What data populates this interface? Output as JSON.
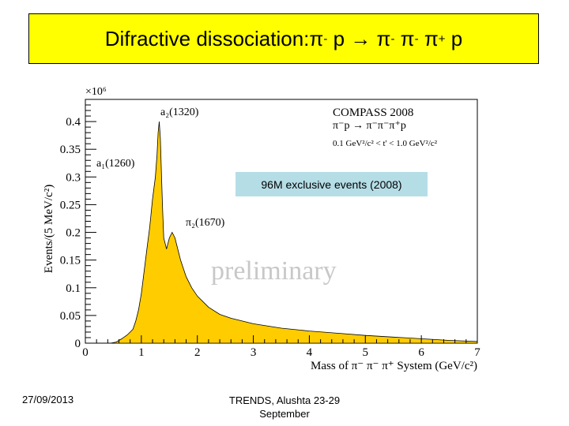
{
  "slide": {
    "title_prefix": "Difractive dissociation: ",
    "title_parts": [
      "π",
      "-",
      " p ",
      "→",
      " π",
      "-",
      " π",
      "-",
      " π",
      "+",
      " p"
    ],
    "footer_date": "27/09/2013",
    "footer_venue": "TRENDS, Alushta 23-29 September",
    "events_label": "96M exclusive events (2008)",
    "colors": {
      "title_bg": "#ffff00",
      "fill": "#ffcc00",
      "events_bg": "#b5dde6"
    }
  },
  "chart_data": {
    "type": "area",
    "title": "",
    "xlabel": "Mass of π⁻ π⁻ π⁺ System (GeV/c²)",
    "ylabel": "Events/(5 MeV/c²)",
    "y_multiplier": "×10⁶",
    "xlim": [
      0,
      7
    ],
    "ylim": [
      0,
      0.44
    ],
    "x_ticks": [
      "0",
      "1",
      "2",
      "3",
      "4",
      "5",
      "6",
      "7"
    ],
    "y_ticks": [
      "0",
      "0.05",
      "0.1",
      "0.15",
      "0.2",
      "0.25",
      "0.3",
      "0.35",
      "0.4"
    ],
    "legend": [
      "COMPASS 2008",
      "π⁻p → π⁻π⁻π⁺p",
      "0.1 GeV²/c² < t' < 1.0 GeV²/c²"
    ],
    "annotations": [
      {
        "text": "a₂(1320)",
        "x": 1.32,
        "y": 0.42
      },
      {
        "text": "a₁(1260)",
        "x": 1.25,
        "y": 0.31
      },
      {
        "text": "π₂(1670)",
        "x": 1.75,
        "y": 0.205
      },
      {
        "text": "preliminary",
        "x": 2.3,
        "y": 0.13
      }
    ],
    "x": [
      0.45,
      0.55,
      0.65,
      0.75,
      0.85,
      0.9,
      0.95,
      1.0,
      1.05,
      1.1,
      1.15,
      1.2,
      1.25,
      1.28,
      1.3,
      1.32,
      1.34,
      1.36,
      1.38,
      1.4,
      1.45,
      1.5,
      1.55,
      1.6,
      1.65,
      1.7,
      1.8,
      1.9,
      2.0,
      2.2,
      2.4,
      2.6,
      2.8,
      3.0,
      3.5,
      4.0,
      4.5,
      5.0,
      5.5,
      6.0,
      6.5,
      7.0
    ],
    "y": [
      0.0,
      0.002,
      0.008,
      0.015,
      0.025,
      0.04,
      0.06,
      0.09,
      0.13,
      0.17,
      0.21,
      0.26,
      0.3,
      0.34,
      0.38,
      0.4,
      0.37,
      0.3,
      0.24,
      0.19,
      0.17,
      0.19,
      0.2,
      0.19,
      0.17,
      0.15,
      0.12,
      0.1,
      0.085,
      0.065,
      0.052,
      0.045,
      0.04,
      0.035,
      0.027,
      0.022,
      0.018,
      0.014,
      0.011,
      0.008,
      0.005,
      0.003
    ]
  }
}
